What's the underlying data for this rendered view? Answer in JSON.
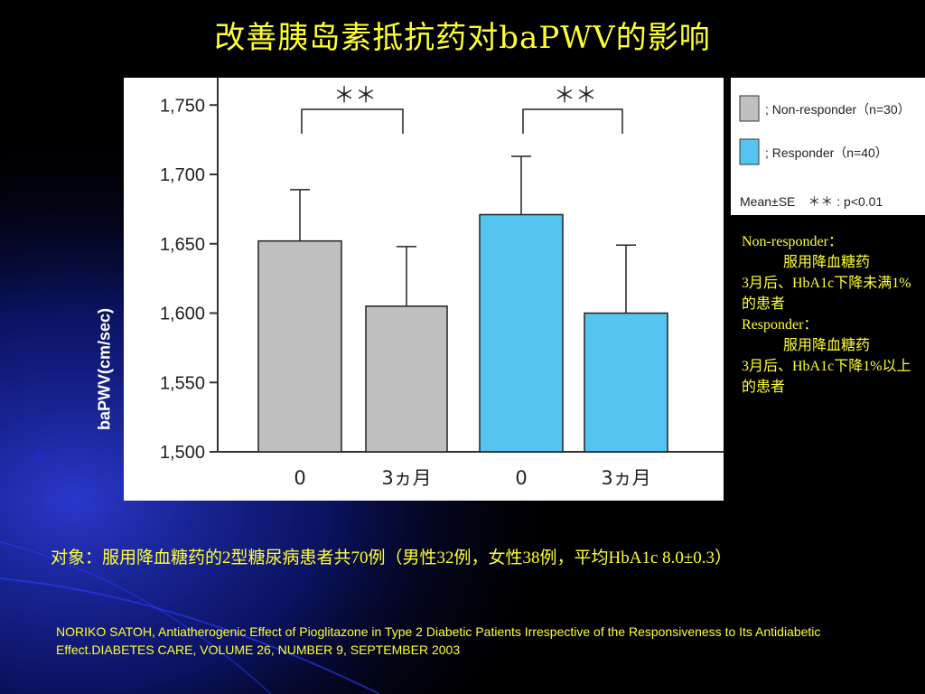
{
  "title": "改善胰岛素抵抗药对baPWV的影响",
  "chart_data": {
    "type": "bar",
    "ylabel": "baPWV(cm/sec)",
    "ylim": [
      1500,
      1760
    ],
    "yticks": [
      1500,
      1550,
      1600,
      1650,
      1700,
      1750
    ],
    "ytick_labels": [
      "1,500",
      "1,550",
      "1,600",
      "1,650",
      "1,700",
      "1,750"
    ],
    "categories": [
      "0",
      "3ヵ月",
      "0",
      "3ヵ月"
    ],
    "bars": [
      {
        "group": "Non-responder",
        "label": "0",
        "value": 1652,
        "error": 37
      },
      {
        "group": "Non-responder",
        "label": "3ヵ月",
        "value": 1605,
        "error": 43
      },
      {
        "group": "Responder",
        "label": "0",
        "value": 1671,
        "error": 42
      },
      {
        "group": "Responder",
        "label": "3ヵ月",
        "value": 1600,
        "error": 49
      }
    ],
    "significance": [
      {
        "between": [
          0,
          1
        ],
        "label": "＊＊"
      },
      {
        "between": [
          2,
          3
        ],
        "label": "＊＊"
      }
    ],
    "legend": [
      {
        "label": "; Non-responder（n=30）",
        "color": "#c0c0c0"
      },
      {
        "label": "; Responder（n=40）",
        "color": "#55c4f0"
      }
    ],
    "legend_note": "Mean±SE　＊＊ : p<0.01"
  },
  "notes": {
    "nonresponder_title": "Non-responder：",
    "nonresponder_line1": "服用降血糖药",
    "nonresponder_line2": "3月后、HbA1c下降未满1%的患者",
    "responder_title": "Responder：",
    "responder_line1": "服用降血糖药",
    "responder_line2": "3月后、HbA1c下降1%以上的患者"
  },
  "subject": "对象：服用降血糖药的2型糖尿病患者共70例（男性32例，女性38例，平均HbA1c 8.0±0.3）",
  "citation": "NORIKO SATOH, Antiatherogenic Effect of Pioglitazone in Type 2 Diabetic Patients Irrespective of the Responsiveness to Its Antidiabetic Effect.DIABETES CARE, VOLUME 26, NUMBER 9, SEPTEMBER 2003"
}
